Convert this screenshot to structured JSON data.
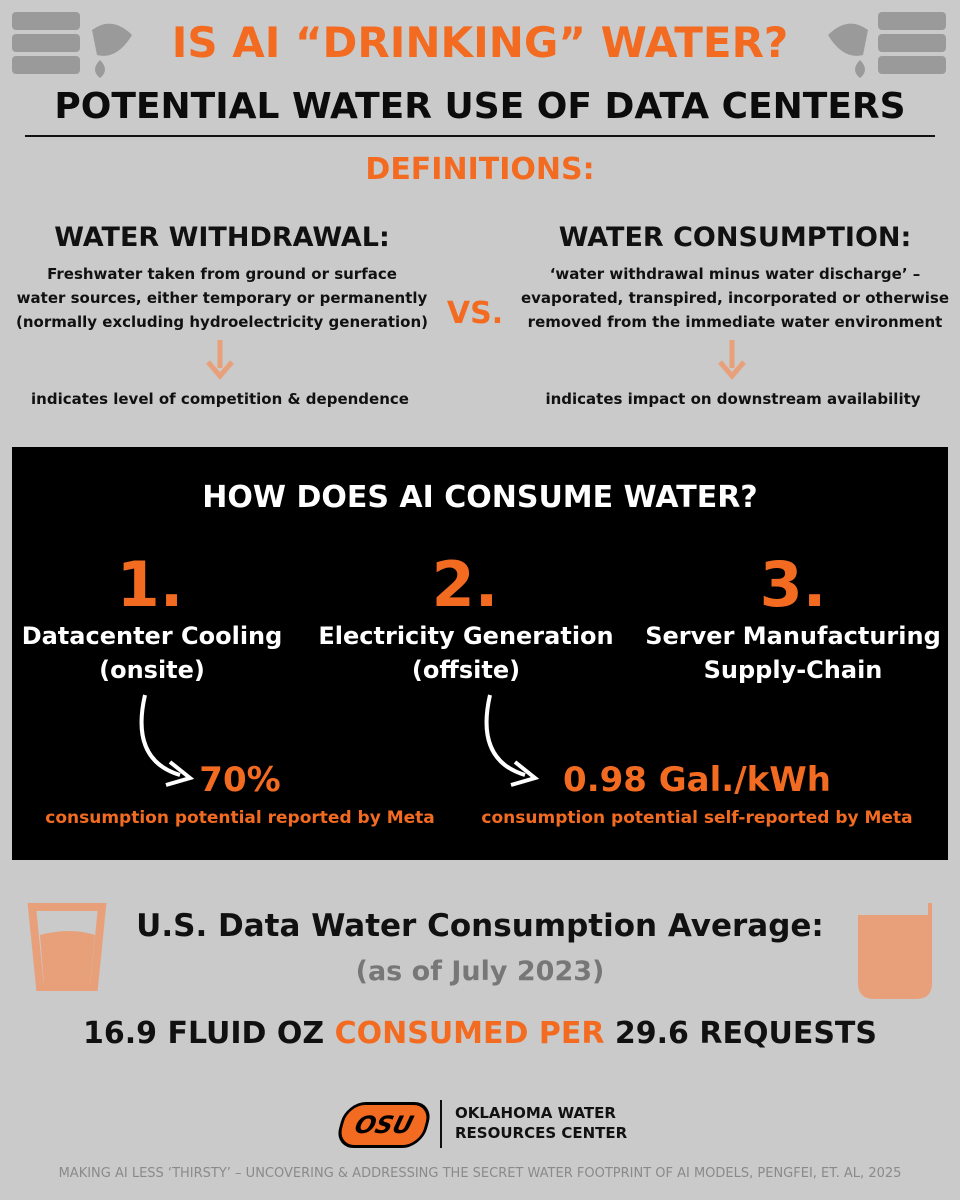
{
  "header": {
    "title": "IS AI “DRINKING” WATER?",
    "subtitle": "POTENTIAL WATER USE OF DATA CENTERS"
  },
  "definitions": {
    "heading": "DEFINITIONS:",
    "vs": "VS.",
    "left": {
      "title": "WATER WITHDRAWAL:",
      "lines": [
        "Freshwater taken from ground or surface",
        "water sources, either temporary or permanently",
        "(normally excluding hydroelectricity generation)"
      ],
      "note": "indicates level of competition & dependence"
    },
    "right": {
      "title": "WATER CONSUMPTION:",
      "lines": [
        "‘water withdrawal minus water discharge’ –",
        "evaporated, transpired, incorporated or otherwise",
        "removed from the immediate water environment"
      ],
      "note": "indicates impact on downstream availability"
    }
  },
  "panel": {
    "title": "HOW DOES AI CONSUME WATER?",
    "items": [
      {
        "number": "1.",
        "lines": [
          "Datacenter Cooling",
          "(onsite)"
        ],
        "stat": "70%",
        "stat_note": "consumption potential reported by Meta"
      },
      {
        "number": "2.",
        "lines": [
          "Electricity Generation",
          "(offsite)"
        ],
        "stat": "0.98 Gal./kWh",
        "stat_note": "consumption potential self-reported by Meta"
      },
      {
        "number": "3.",
        "lines": [
          "Server Manufacturing",
          "Supply-Chain"
        ]
      }
    ]
  },
  "summary": {
    "title": "U.S. Data Water Consumption Average:",
    "date": "(as of July 2023)",
    "amount": "16.9 FLUID OZ",
    "middle": "CONSUMED PER",
    "requests": "29.6 REQUESTS"
  },
  "footer": {
    "logo": "OSU",
    "org_lines": [
      "OKLAHOMA WATER",
      "RESOURCES CENTER"
    ],
    "citation": "MAKING AI LESS ‘THIRSTY’ – UNCOVERING & ADDRESSING THE SECRET WATER FOOTPRINT OF AI MODELS, PENGFEI, ET. AL, 2025"
  }
}
